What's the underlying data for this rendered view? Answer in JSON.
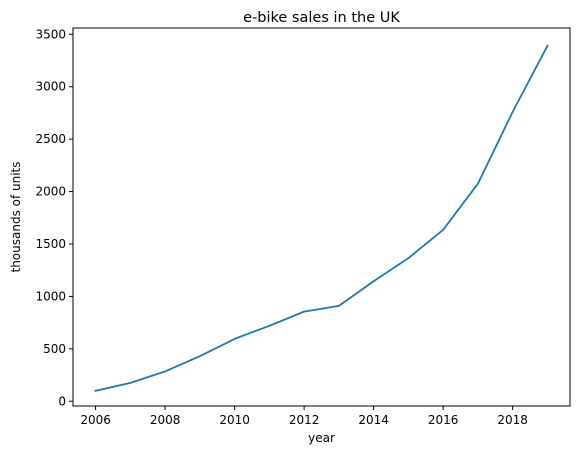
{
  "chart_data": {
    "type": "line",
    "title": "e-bike sales in the UK",
    "xlabel": "year",
    "ylabel": "thousands of units",
    "xlim": [
      2005.35,
      2019.65
    ],
    "ylim": [
      -45,
      3560
    ],
    "x_ticks": [
      2006,
      2008,
      2010,
      2012,
      2014,
      2016,
      2018
    ],
    "y_ticks": [
      0,
      500,
      1000,
      1500,
      2000,
      2500,
      3000,
      3500
    ],
    "grid": false,
    "series": [
      {
        "color": "#1f77b4",
        "x": [
          2006,
          2007,
          2008,
          2009,
          2010,
          2011,
          2012,
          2013,
          2014,
          2015,
          2016,
          2017,
          2018,
          2019
        ],
        "y": [
          100,
          175,
          285,
          430,
          595,
          720,
          855,
          910,
          1145,
          1365,
          1635,
          2075,
          2760,
          3390
        ]
      }
    ]
  }
}
